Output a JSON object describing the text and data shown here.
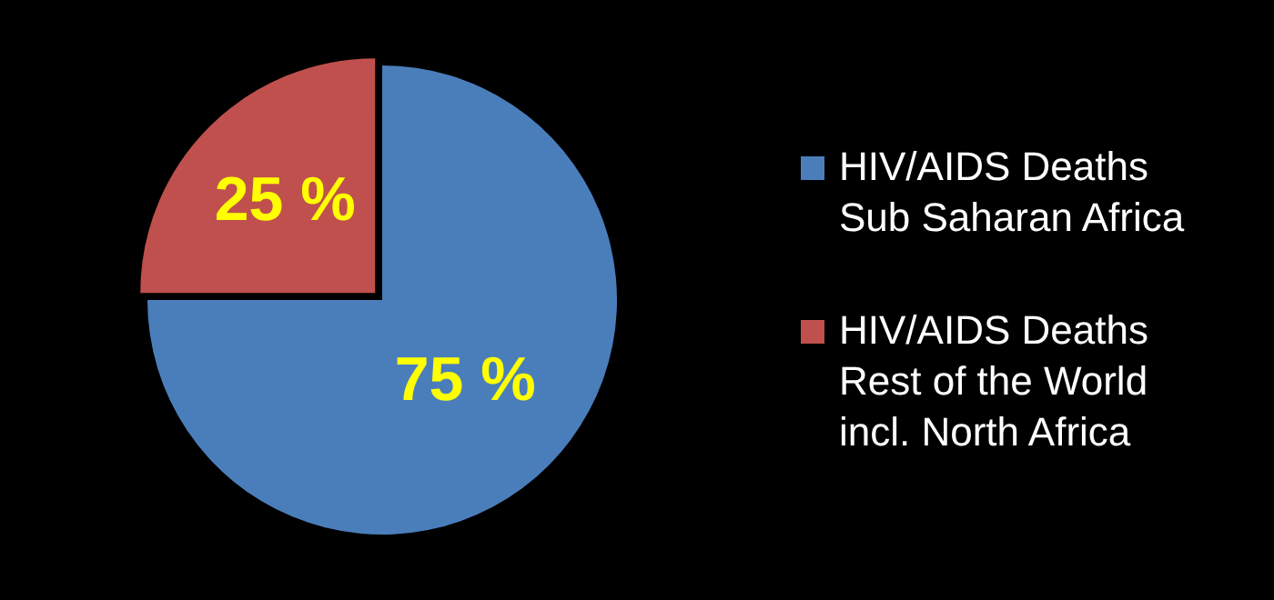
{
  "chart_data": {
    "type": "pie",
    "categories": [
      "HIV/AIDS Deaths Sub Saharan Africa",
      "HIV/AIDS Deaths Rest of the World incl. North Africa"
    ],
    "values": [
      75,
      25
    ],
    "colors": [
      "#4a7ebb",
      "#c0504d"
    ],
    "value_labels": [
      "75 %",
      "25 %"
    ],
    "legend": "right"
  }
}
